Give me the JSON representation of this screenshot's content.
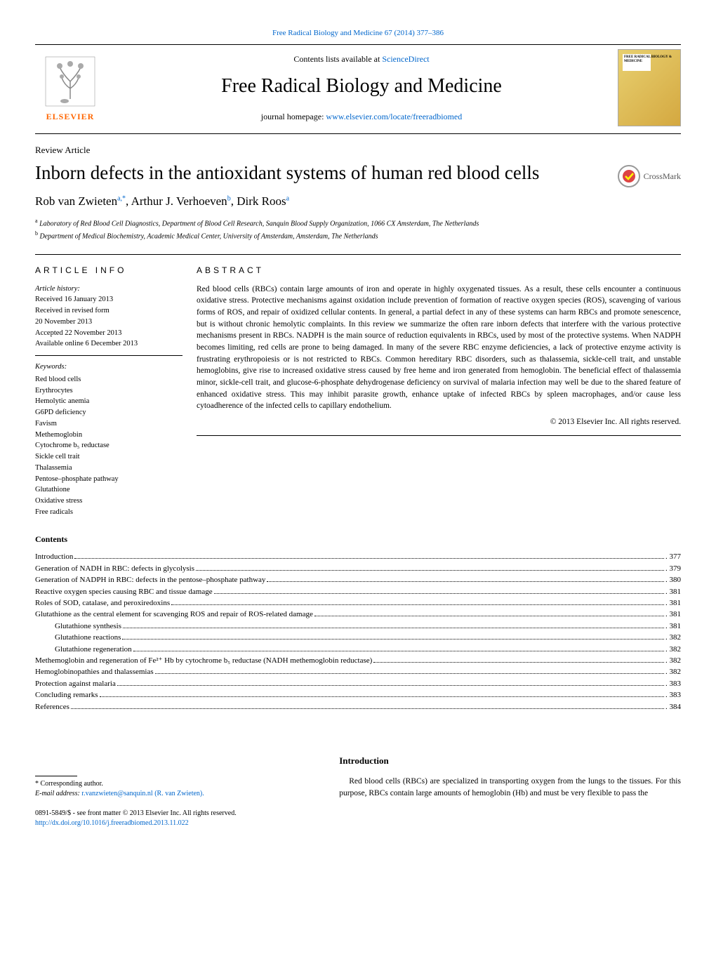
{
  "top_link": {
    "text": "Free Radical Biology and Medicine 67 (2014) 377–386",
    "color": "#0066cc"
  },
  "header": {
    "contents_prefix": "Contents lists available at ",
    "contents_link": "ScienceDirect",
    "journal_name": "Free Radical Biology and Medicine",
    "homepage_prefix": "journal homepage: ",
    "homepage_link": "www.elsevier.com/locate/freeradbiomed",
    "elsevier_label": "ELSEVIER",
    "cover_label": "FREE RADICAL BIOLOGY & MEDICINE"
  },
  "article": {
    "type_label": "Review Article",
    "title": "Inborn defects in the antioxidant systems of human red blood cells",
    "crossmark_label": "CrossMark"
  },
  "authors": {
    "list": "Rob van Zwieten",
    "a1_sup": "a,",
    "a1_ast": "*",
    "a2": ", Arthur J. Verhoeven",
    "a2_sup": "b",
    "a3": ", Dirk Roos",
    "a3_sup": "a"
  },
  "affiliations": {
    "a": "Laboratory of Red Blood Cell Diagnostics, Department of Blood Cell Research, Sanquin Blood Supply Organization, 1066 CX Amsterdam, The Netherlands",
    "b": "Department of Medical Biochemistry, Academic Medical Center, University of Amsterdam, Amsterdam, The Netherlands"
  },
  "info": {
    "heading": "ARTICLE INFO",
    "history_label": "Article history:",
    "received": "Received 16 January 2013",
    "revised": "Received in revised form",
    "revised_date": "20 November 2013",
    "accepted": "Accepted 22 November 2013",
    "online": "Available online 6 December 2013",
    "keywords_label": "Keywords:",
    "keywords": [
      "Red blood cells",
      "Erythrocytes",
      "Hemolytic anemia",
      "G6PD deficiency",
      "Favism",
      "Methemoglobin",
      "Cytochrome b₅ reductase",
      "Sickle cell trait",
      "Thalassemia",
      "Pentose–phosphate pathway",
      "Glutathione",
      "Oxidative stress",
      "Free radicals"
    ]
  },
  "abstract": {
    "heading": "ABSTRACT",
    "text": "Red blood cells (RBCs) contain large amounts of iron and operate in highly oxygenated tissues. As a result, these cells encounter a continuous oxidative stress. Protective mechanisms against oxidation include prevention of formation of reactive oxygen species (ROS), scavenging of various forms of ROS, and repair of oxidized cellular contents. In general, a partial defect in any of these systems can harm RBCs and promote senescence, but is without chronic hemolytic complaints. In this review we summarize the often rare inborn defects that interfere with the various protective mechanisms present in RBCs. NADPH is the main source of reduction equivalents in RBCs, used by most of the protective systems. When NADPH becomes limiting, red cells are prone to being damaged. In many of the severe RBC enzyme deficiencies, a lack of protective enzyme activity is frustrating erythropoiesis or is not restricted to RBCs. Common hereditary RBC disorders, such as thalassemia, sickle-cell trait, and unstable hemoglobins, give rise to increased oxidative stress caused by free heme and iron generated from hemoglobin. The beneficial effect of thalassemia minor, sickle-cell trait, and glucose-6-phosphate dehydrogenase deficiency on survival of malaria infection may well be due to the shared feature of enhanced oxidative stress. This may inhibit parasite growth, enhance uptake of infected RBCs by spleen macrophages, and/or cause less cytoadherence of the infected cells to capillary endothelium.",
    "copyright": "© 2013 Elsevier Inc. All rights reserved."
  },
  "contents": {
    "heading": "Contents",
    "items": [
      {
        "title": "Introduction",
        "page": "377",
        "indent": 0
      },
      {
        "title": "Generation of NADH in RBC: defects in glycolysis",
        "page": "379",
        "indent": 0
      },
      {
        "title": "Generation of NADPH in RBC: defects in the pentose–phosphate pathway",
        "page": "380",
        "indent": 0
      },
      {
        "title": "Reactive oxygen species causing RBC and tissue damage",
        "page": "381",
        "indent": 0
      },
      {
        "title": "Roles of SOD, catalase, and peroxiredoxins",
        "page": "381",
        "indent": 0
      },
      {
        "title": "Glutathione as the central element for scavenging ROS and repair of ROS-related damage",
        "page": "381",
        "indent": 0
      },
      {
        "title": "Glutathione synthesis",
        "page": "381",
        "indent": 1
      },
      {
        "title": "Glutathione reactions",
        "page": "382",
        "indent": 1
      },
      {
        "title": "Glutathione regeneration",
        "page": "382",
        "indent": 1
      },
      {
        "title": "Methemoglobin and regeneration of Fe²⁺ Hb by cytochrome b₅ reductase (NADH methemoglobin reductase)",
        "page": "382",
        "indent": 0
      },
      {
        "title": "Hemoglobinopathies and thalassemias",
        "page": "382",
        "indent": 0
      },
      {
        "title": "Protection against malaria",
        "page": "383",
        "indent": 0
      },
      {
        "title": "Concluding remarks",
        "page": "383",
        "indent": 0
      },
      {
        "title": "References",
        "page": "384",
        "indent": 0
      }
    ]
  },
  "introduction": {
    "heading": "Introduction",
    "text": "Red blood cells (RBCs) are specialized in transporting oxygen from the lungs to the tissues. For this purpose, RBCs contain large amounts of hemoglobin (Hb) and must be very flexible to pass the"
  },
  "footnote": {
    "corr_label": "* Corresponding author.",
    "email_label": "E-mail address: ",
    "email_link": "r.vanzwieten@sanquin.nl (R. van Zwieten)."
  },
  "issn": {
    "line1": "0891-5849/$ - see front matter © 2013 Elsevier Inc. All rights reserved.",
    "doi": "http://dx.doi.org/10.1016/j.freeradbiomed.2013.11.022"
  },
  "colors": {
    "link": "#0066cc",
    "elsevier_orange": "#ff6600",
    "text": "#000000",
    "bg": "#ffffff"
  }
}
